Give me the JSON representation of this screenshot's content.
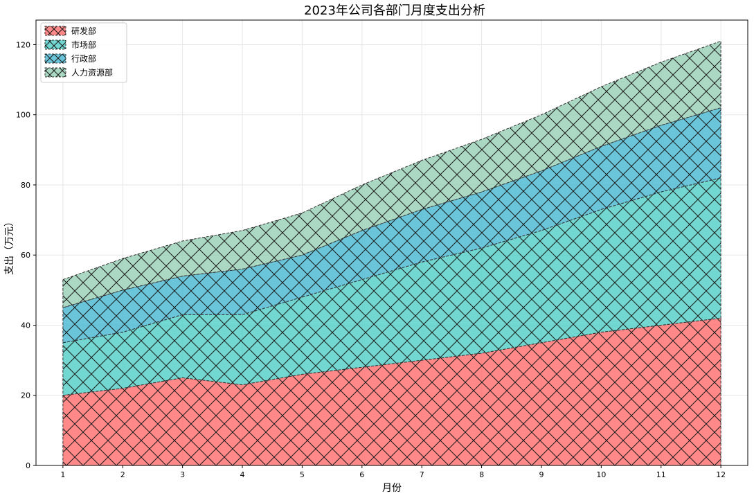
{
  "chart_data": {
    "type": "area",
    "stacked": true,
    "title": "2023年公司各部门月度支出分析",
    "xlabel": "月份",
    "ylabel": "支出（万元）",
    "x": [
      1,
      2,
      3,
      4,
      5,
      6,
      7,
      8,
      9,
      10,
      11,
      12
    ],
    "xlim": [
      0.55,
      12.45
    ],
    "ylim": [
      0,
      127
    ],
    "yticks": [
      0,
      20,
      40,
      60,
      80,
      100,
      120
    ],
    "grid": true,
    "legend_position": "top-left",
    "hatch": "cross-diagonal",
    "series": [
      {
        "name": "研发部",
        "color": "#ff6b6b",
        "values": [
          20,
          22,
          25,
          23,
          26,
          28,
          30,
          32,
          35,
          38,
          40,
          42
        ]
      },
      {
        "name": "市场部",
        "color": "#4ecdc4",
        "values": [
          15,
          16,
          18,
          20,
          22,
          25,
          28,
          30,
          32,
          35,
          38,
          40
        ]
      },
      {
        "name": "行政部",
        "color": "#45b7d1",
        "values": [
          10,
          12,
          11,
          13,
          12,
          14,
          15,
          16,
          17,
          18,
          19,
          20
        ]
      },
      {
        "name": "人力资源部",
        "color": "#96ceb4",
        "values": [
          8,
          9,
          10,
          11,
          12,
          13,
          14,
          15,
          16,
          17,
          18,
          19
        ]
      }
    ]
  }
}
